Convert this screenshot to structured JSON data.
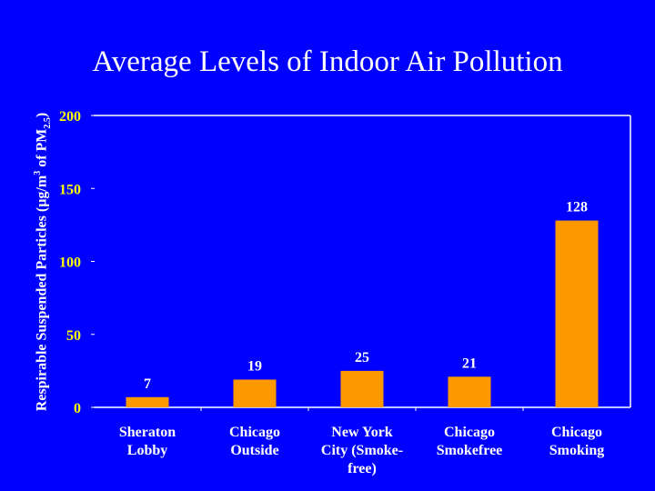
{
  "chart_data": {
    "type": "bar",
    "title": "Average Levels of Indoor Air Pollution",
    "ylabel": {
      "main": "Respirable Suspended Particles (µg/m",
      "sup": "3",
      "mid": " of PM",
      "sub": "2.5",
      "end": ")"
    },
    "xlabel": "",
    "categories": [
      [
        "Sheraton",
        "Lobby"
      ],
      [
        "Chicago",
        "Outside"
      ],
      [
        "New York",
        "City (Smoke-",
        "free)"
      ],
      [
        "Chicago",
        "Smokefree"
      ],
      [
        "Chicago",
        "Smoking"
      ]
    ],
    "values": [
      7,
      19,
      25,
      21,
      128
    ],
    "value_labels": [
      "7",
      "19",
      "25",
      "21",
      "128"
    ],
    "ylim": [
      0,
      200
    ],
    "yticks": [
      0,
      50,
      100,
      150,
      200
    ],
    "grid": false,
    "legend": "none",
    "colors": {
      "background": "#0000ff",
      "bar": "#ff9900",
      "text": "#ffffff",
      "tick_label": "#ffff00",
      "axis": "#ffffff"
    }
  }
}
